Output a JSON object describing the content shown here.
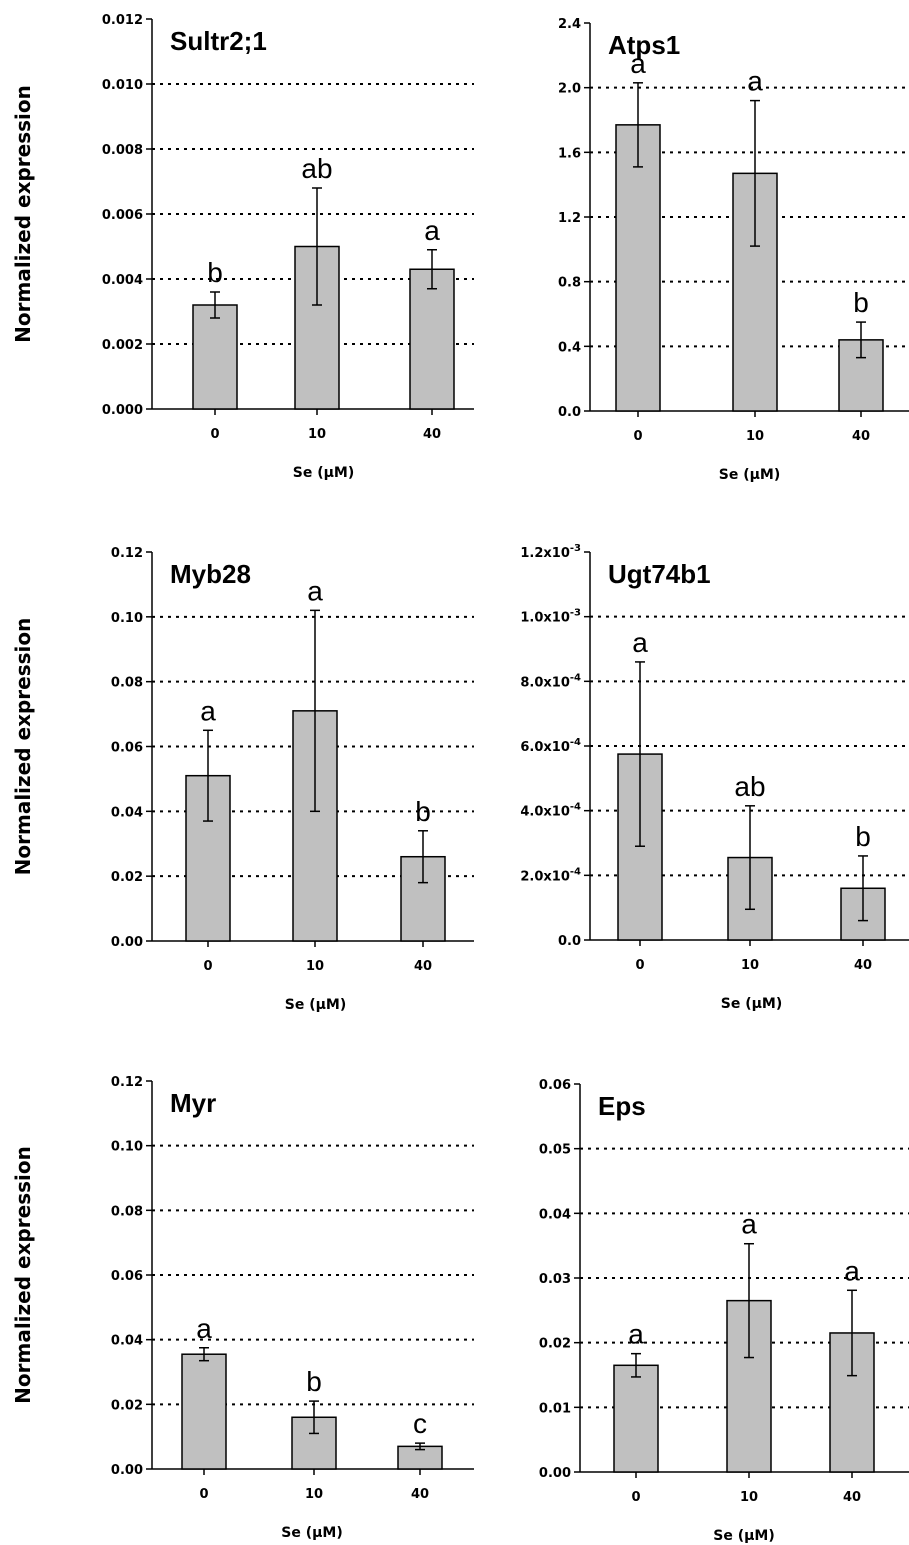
{
  "chart_data": [
    {
      "type": "bar",
      "title": "Sultr2;1",
      "xlabel": "Se (µM)",
      "ylabel": "Normalized expression",
      "categories": [
        "0",
        "10",
        "40"
      ],
      "values": [
        0.0032,
        0.005,
        0.0043
      ],
      "errors": [
        0.0004,
        0.0018,
        0.0006
      ],
      "significance": [
        "b",
        "ab",
        "a"
      ],
      "ylim": [
        0,
        0.012
      ],
      "yticks": [
        "0.000",
        "0.002",
        "0.004",
        "0.006",
        "0.008",
        "0.010",
        "0.012"
      ],
      "grid": "dotted horizontal",
      "bar_color": "#c0c0c0"
    },
    {
      "type": "bar",
      "title": "Atps1",
      "xlabel": "Se (µM)",
      "ylabel": "",
      "categories": [
        "0",
        "10",
        "40"
      ],
      "values": [
        1.77,
        1.47,
        0.44
      ],
      "errors": [
        0.26,
        0.45,
        0.11
      ],
      "significance": [
        "a",
        "a",
        "b"
      ],
      "ylim": [
        0,
        2.4
      ],
      "yticks": [
        "0.0",
        "0.4",
        "0.8",
        "1.2",
        "1.6",
        "2.0",
        "2.4"
      ],
      "grid": "dotted horizontal",
      "bar_color": "#c0c0c0"
    },
    {
      "type": "bar",
      "title": "Myb28",
      "xlabel": "Se (µM)",
      "ylabel": "Normalized expression",
      "categories": [
        "0",
        "10",
        "40"
      ],
      "values": [
        0.051,
        0.071,
        0.026
      ],
      "errors": [
        0.014,
        0.031,
        0.008
      ],
      "significance": [
        "a",
        "a",
        "b"
      ],
      "ylim": [
        0,
        0.12
      ],
      "yticks": [
        "0.00",
        "0.02",
        "0.04",
        "0.06",
        "0.08",
        "0.10",
        "0.12"
      ],
      "grid": "dotted horizontal",
      "bar_color": "#c0c0c0"
    },
    {
      "type": "bar",
      "title": "Ugt74b1",
      "xlabel": "Se (µM)",
      "ylabel": "",
      "categories": [
        "0",
        "10",
        "40"
      ],
      "values": [
        0.000575,
        0.000255,
        0.00016
      ],
      "errors": [
        0.000285,
        0.00016,
        0.0001
      ],
      "significance": [
        "a",
        "ab",
        "b"
      ],
      "ylim": [
        0,
        0.0012
      ],
      "yticks": [
        {
          "m": "0.0",
          "e": ""
        },
        {
          "m": "2.0x10",
          "e": "-4"
        },
        {
          "m": "4.0x10",
          "e": "-4"
        },
        {
          "m": "6.0x10",
          "e": "-4"
        },
        {
          "m": "8.0x10",
          "e": "-4"
        },
        {
          "m": "1.0x10",
          "e": "-3"
        },
        {
          "m": "1.2x10",
          "e": "-3"
        }
      ],
      "grid": "dotted horizontal",
      "bar_color": "#c0c0c0"
    },
    {
      "type": "bar",
      "title": "Myr",
      "xlabel": "Se (µM)",
      "ylabel": "Normalized expression",
      "categories": [
        "0",
        "10",
        "40"
      ],
      "values": [
        0.0355,
        0.016,
        0.007
      ],
      "errors": [
        0.002,
        0.005,
        0.001
      ],
      "significance": [
        "a",
        "b",
        "c"
      ],
      "ylim": [
        0,
        0.12
      ],
      "yticks": [
        "0.00",
        "0.02",
        "0.04",
        "0.06",
        "0.08",
        "0.10",
        "0.12"
      ],
      "grid": "dotted horizontal",
      "bar_color": "#c0c0c0"
    },
    {
      "type": "bar",
      "title": "Eps",
      "xlabel": "Se (µM)",
      "ylabel": "",
      "categories": [
        "0",
        "10",
        "40"
      ],
      "values": [
        0.0165,
        0.0265,
        0.0215
      ],
      "errors": [
        0.0018,
        0.0088,
        0.0066
      ],
      "significance": [
        "a",
        "a",
        "a"
      ],
      "ylim": [
        0,
        0.06
      ],
      "yticks": [
        "0.00",
        "0.01",
        "0.02",
        "0.03",
        "0.04",
        "0.05",
        "0.06"
      ],
      "grid": "dotted horizontal",
      "bar_color": "#c0c0c0"
    }
  ]
}
